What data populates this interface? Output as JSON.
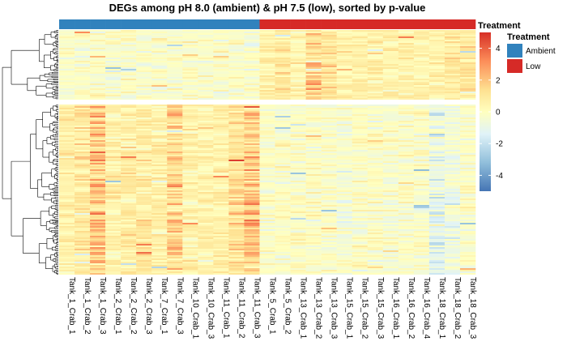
{
  "chart_data": {
    "type": "heatmap",
    "title": "DEGs among pH 8.0 (ambient) & pH 7.5 (low), sorted by p-value",
    "columns": [
      "Tank_1_Crab_1",
      "Tank_1_Crab_2",
      "Tank_1_Crab_3",
      "Tank_2_Crab_1",
      "Tank_2_Crab_2",
      "Tank_2_Crab_3",
      "Tank_7_Crab_1",
      "Tank_7_Crab_3",
      "Tank_10_Crab_1",
      "Tank_10_Crab_3",
      "Tank_11_Crab_1",
      "Tank_11_Crab_2",
      "Tank_11_Crab_3",
      "Tank_5_Crab_1",
      "Tank_5_Crab_2",
      "Tank_13_Crab_1",
      "Tank_13_Crab_2",
      "Tank_13_Crab_3",
      "Tank_15_Crab_1",
      "Tank_15_Crab_2",
      "Tank_15_Crab_3",
      "Tank_16_Crab_1",
      "Tank_16_Crab_2",
      "Tank_16_Crab_4",
      "Tank_18_Crab_1",
      "Tank_18_Crab_2",
      "Tank_18_Crab_3"
    ],
    "treatment_by_column": [
      "Ambient",
      "Ambient",
      "Ambient",
      "Ambient",
      "Ambient",
      "Ambient",
      "Ambient",
      "Ambient",
      "Ambient",
      "Ambient",
      "Ambient",
      "Ambient",
      "Ambient",
      "Low",
      "Low",
      "Low",
      "Low",
      "Low",
      "Low",
      "Low",
      "Low",
      "Low",
      "Low",
      "Low",
      "Low",
      "Low",
      "Low"
    ],
    "row_clusters": 2,
    "color_scale": {
      "range": [
        -5,
        5
      ],
      "ticks": [
        4,
        2,
        0,
        -2,
        -4
      ],
      "colors": [
        "#4575b4",
        "#91bfdb",
        "#e0f3f8",
        "#ffffbf",
        "#fee090",
        "#fc8d59",
        "#d73027"
      ]
    },
    "annotation_legend": {
      "title": "Treatment",
      "entries": [
        {
          "label": "Ambient",
          "color": "#3182bd"
        },
        {
          "label": "Low",
          "color": "#d62a27"
        }
      ]
    },
    "annotation_bar_title": "Treatment"
  }
}
